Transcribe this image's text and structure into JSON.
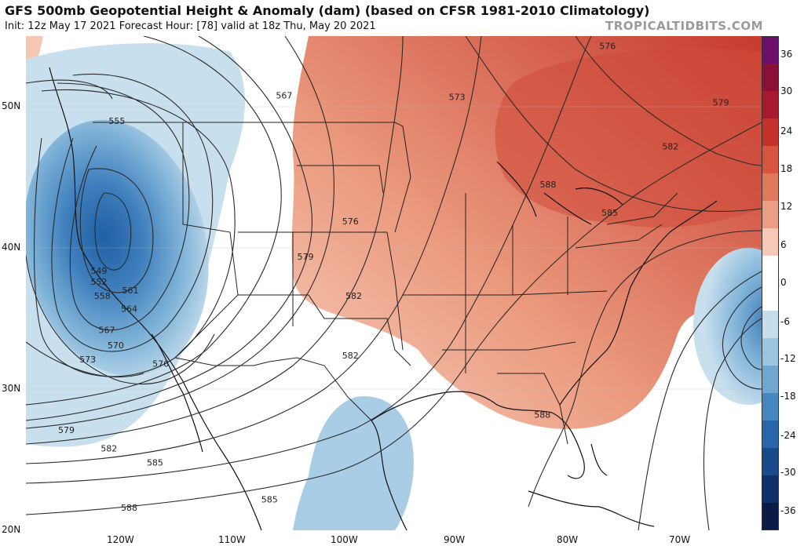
{
  "header": {
    "title": "GFS 500mb Geopotential Height & Anomaly (dam) (based on CFSR 1981-2010 Climatology)",
    "subtitle": "Init: 12z May 17 2021   Forecast Hour: [78]   valid at 18z Thu, May 20 2021",
    "brand": "TROPICALTIDBITS.COM"
  },
  "axes": {
    "lat_labels": [
      "50N",
      "40N",
      "30N",
      "20N"
    ],
    "lon_labels": [
      "120W",
      "110W",
      "100W",
      "90W",
      "80W",
      "70W"
    ]
  },
  "colorbar": {
    "labels": [
      "36",
      "30",
      "24",
      "18",
      "12",
      "6",
      "0",
      "-6",
      "-12",
      "-18",
      "-24",
      "-30",
      "-36"
    ],
    "colors": [
      "#6b0f6b",
      "#8a1038",
      "#a8192f",
      "#c4312a",
      "#d65540",
      "#e07a5f",
      "#eb9e86",
      "#f5c8b8",
      "#ffffff",
      "#ffffff",
      "#c5ddec",
      "#9cc5df",
      "#6fa7d0",
      "#4687c0",
      "#2866a8",
      "#1a4a8a",
      "#0f3068",
      "#0a1c45"
    ]
  },
  "contours": {
    "labels": [
      {
        "text": "555",
        "lon": -119.9,
        "lat": 49.0
      },
      {
        "text": "549",
        "lon": -121.5,
        "lat": 38.4
      },
      {
        "text": "552",
        "lon": -121.5,
        "lat": 37.6
      },
      {
        "text": "558",
        "lon": -121.2,
        "lat": 36.6
      },
      {
        "text": "561",
        "lon": -118.7,
        "lat": 37.0
      },
      {
        "text": "564",
        "lon": -118.8,
        "lat": 35.7
      },
      {
        "text": "567",
        "lon": -120.8,
        "lat": 34.2
      },
      {
        "text": "570",
        "lon": -120.0,
        "lat": 33.1
      },
      {
        "text": "573",
        "lon": -122.5,
        "lat": 32.1
      },
      {
        "text": "576",
        "lon": -116.0,
        "lat": 31.8
      },
      {
        "text": "579",
        "lon": -124.4,
        "lat": 27.1
      },
      {
        "text": "582",
        "lon": -120.6,
        "lat": 25.8
      },
      {
        "text": "585",
        "lon": -116.5,
        "lat": 24.8
      },
      {
        "text": "588",
        "lon": -118.8,
        "lat": 21.6
      },
      {
        "text": "567",
        "lon": -105.0,
        "lat": 50.8
      },
      {
        "text": "573",
        "lon": -89.6,
        "lat": 50.7
      },
      {
        "text": "576",
        "lon": -99.1,
        "lat": 41.9
      },
      {
        "text": "579",
        "lon": -103.1,
        "lat": 39.4
      },
      {
        "text": "582",
        "lon": -98.8,
        "lat": 36.6
      },
      {
        "text": "582",
        "lon": -99.1,
        "lat": 32.4
      },
      {
        "text": "585",
        "lon": -106.3,
        "lat": 22.2
      },
      {
        "text": "588",
        "lon": -81.5,
        "lat": 44.5
      },
      {
        "text": "585",
        "lon": -76.0,
        "lat": 42.5
      },
      {
        "text": "582",
        "lon": -70.6,
        "lat": 47.2
      },
      {
        "text": "579",
        "lon": -66.1,
        "lat": 50.3
      },
      {
        "text": "576",
        "lon": -76.2,
        "lat": 54.3
      },
      {
        "text": "588",
        "lon": -82.0,
        "lat": 28.2
      }
    ]
  }
}
